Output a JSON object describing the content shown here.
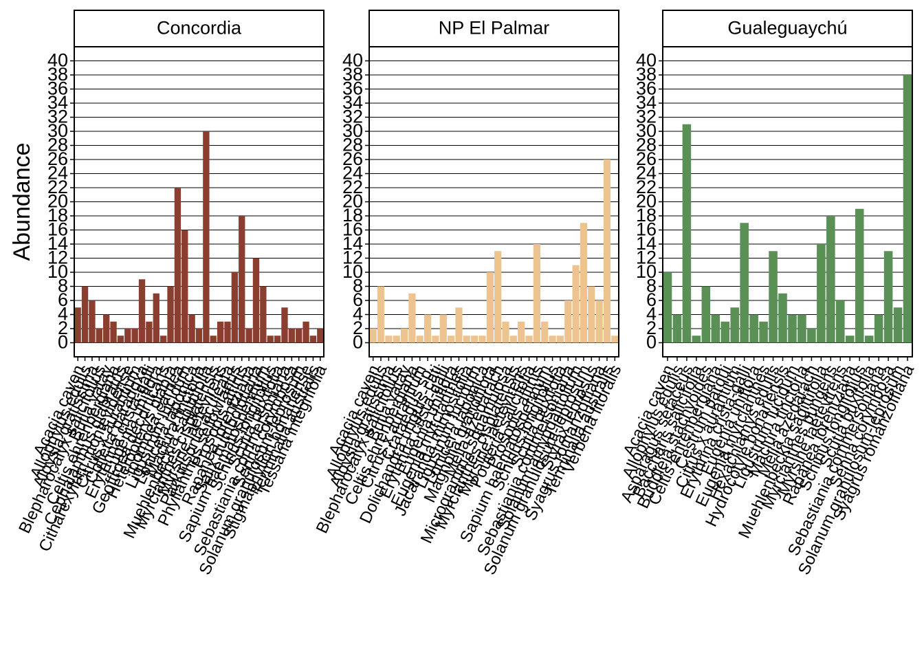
{
  "chart_data": [
    {
      "type": "bar",
      "title": "Concordia",
      "y_label": "Abundance",
      "color": "#8b3e2f",
      "categories": [
        "Acacia caven",
        "Allophylus edulis",
        "Aloysia gratissima",
        "Blepharocalyx salicifolius",
        "Butia yatay",
        "Celtis ehrenbergiana",
        "Cephalanthus glabratus",
        "Citharexylum montevidense",
        "Citrus x aurantium",
        "Colletia paradoxa",
        "Erythrina crista-galli",
        "Eugenia uniflora",
        "Geoffroea decorticans",
        "Heteropterys glabra",
        "Ipomoea carnea",
        "Ligustrum lucidum",
        "Lonicera japonica",
        "Maclura tinctoria",
        "Muehlenbeckia sagittifolia",
        "Myrcianthes cisplatensis",
        "Myrsine laetevirens",
        "Parkinsonia aculeata",
        "Phyllanthus sellowianus",
        "Prosopis affinis",
        "Rapanea lorentziana",
        "Salix humboldtiana",
        "Sapium haematospermum",
        "Schinus longifolius",
        "Scutia buxifolia",
        "Sebastiania commersoniana",
        "Senna corymbosa",
        "Solanum granulosum-leprosum",
        "Stigmaphyllon bonariense",
        "Terminalia australis",
        "Tessaria integrifolia"
      ],
      "values": [
        5,
        8,
        6,
        2,
        4,
        3,
        1,
        2,
        2,
        9,
        3,
        7,
        1,
        8,
        22,
        16,
        4,
        2,
        30,
        1,
        3,
        3,
        10,
        18,
        2,
        12,
        8,
        1,
        1,
        5,
        2,
        2,
        3,
        1,
        2
      ],
      "ylim": [
        -2,
        42
      ],
      "yticks": [
        0,
        2,
        4,
        6,
        8,
        10,
        12,
        14,
        16,
        18,
        20,
        22,
        24,
        26,
        28,
        30,
        32,
        34,
        36,
        38,
        40
      ],
      "grid": true
    },
    {
      "type": "bar",
      "title": "NP El Palmar",
      "color": "#edc48f",
      "categories": [
        "Acacia caven",
        "Allophylus edulis",
        "Aloysia gratissima",
        "Blepharocalyx salicifolius",
        "Butia yatay",
        "Celtis ehrenbergiana",
        "Citrus x aurantium",
        "Crataegus sp.",
        "Dolichandra unguis-cati",
        "Erythrina crista-galli",
        "Eugenia uniflora",
        "Eugenia myrcianthes",
        "Jacaranda mimosifolia",
        "Ligustrum lucidum",
        "Lonicera japonica",
        "Magnolia grandiflora",
        "Melia azedarach",
        "Microgramma squamulosa",
        "Myrcianthes cisplatensis",
        "Myrsine laetevirens",
        "Pouteria salicifolia",
        "Prosopis affinis",
        "Sapium haematospermum",
        "Schinus longifolius",
        "Scutia buxifolia",
        "Sebastiania commersoniana",
        "Solanum amygdalifolium",
        "Solanum granulosum-leprosum",
        "Styrax leprosus",
        "Syagrus romanzoffiana",
        "Terminalia australis",
        "Verbena litoralis"
      ],
      "values": [
        2,
        8,
        1,
        1,
        2,
        7,
        1,
        4,
        1,
        4,
        1,
        5,
        1,
        1,
        1,
        10,
        13,
        3,
        1,
        3,
        1,
        14,
        3,
        1,
        1,
        6,
        11,
        17,
        8,
        6,
        26,
        1
      ],
      "ylim": [
        -2,
        42
      ],
      "yticks": [
        0,
        2,
        4,
        6,
        8,
        10,
        12,
        14,
        16,
        18,
        20,
        22,
        24,
        26,
        28,
        30,
        32,
        34,
        36,
        38,
        40
      ],
      "grid": true
    },
    {
      "type": "bar",
      "title": "Gualeguaychú",
      "color": "#5a8f55",
      "categories": [
        "Acacia caven",
        "Allophylus edulis",
        "Asparagus setaceus",
        "Baccharis salicifolia",
        "Buddleja stachyoides",
        "Celtis ehrenbergiana",
        "Cestrum parqui",
        "Citrus x aurantium",
        "Erythrina crista-galli",
        "Eugenia uniflora",
        "Eugenia myrcianthes",
        "Hexachlamys edulis",
        "Hydrocotyle bonariensis",
        "Ligustrum lucidum",
        "Maclura tinctoria",
        "Melia azedarach",
        "Muehlenbeckia sagittifolia",
        "Myrcianthes pungens",
        "Myrsine laetevirens",
        "Rapanea lorentziana",
        "Schinus longifolius",
        "Scutia buxifolia",
        "Sebastiania commersoniana",
        "Senna corymbosa",
        "Solanum granulosum-leprosum",
        "Syagrus romanzoffiana"
      ],
      "values": [
        10,
        4,
        31,
        1,
        8,
        4,
        3,
        5,
        17,
        4,
        3,
        13,
        7,
        4,
        4,
        2,
        14,
        18,
        6,
        1,
        19,
        1,
        4,
        13,
        5,
        38
      ],
      "ylim": [
        -2,
        42
      ],
      "yticks": [
        0,
        2,
        4,
        6,
        8,
        10,
        12,
        14,
        16,
        18,
        20,
        22,
        24,
        26,
        28,
        30,
        32,
        34,
        36,
        38,
        40
      ],
      "grid": true
    }
  ]
}
